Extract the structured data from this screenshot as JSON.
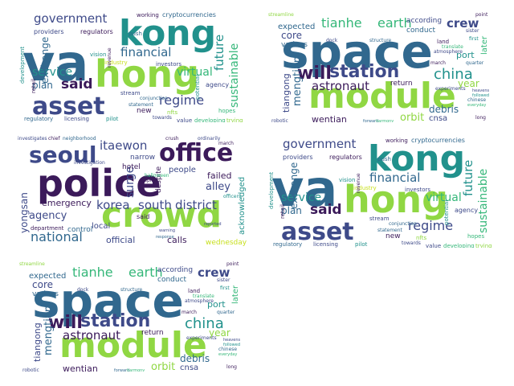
{
  "palette": {
    "dark": "#3b1a5a",
    "indigo": "#3e4a89",
    "slate": "#31688e",
    "teal": "#21918c",
    "sea": "#35b779",
    "lime": "#90d743",
    "yellow": "#c8e020"
  },
  "clouds": [
    {
      "name": "crypto-hongkong-cloud",
      "words": {
        "va": "va",
        "kong": "kong",
        "hong": "hong",
        "asset": "asset",
        "government": "government",
        "financial": "financial",
        "service": "service",
        "said": "said",
        "plan": "plan",
        "regime": "regime",
        "virtual": "virtual",
        "sustainable": "sustainable",
        "future": "future",
        "exchange": "exchange",
        "providers": "providers",
        "regulators": "regulators",
        "vision": "vision",
        "working": "working",
        "cryptocurrencies": "cryptocurrencies",
        "investors": "investors",
        "regulatory": "regulatory",
        "licensing": "licensing",
        "pilot": "pilot",
        "new": "new",
        "statement": "statement",
        "value": "value",
        "developing": "developing",
        "trying": "trying",
        "development": "development",
        "retail": "retail",
        "industry": "industry",
        "stream": "stream",
        "conjunction": "conjunction",
        "agency": "agency",
        "hopes": "hopes",
        "potential": "potential",
        "revenue": "revenue",
        "towards": "towards",
        "nfts": "nfts",
        "push": "push"
      }
    },
    {
      "name": "space-station-cloud",
      "words": {
        "space": "space",
        "module": "module",
        "station": "station",
        "will": "will",
        "china": "china",
        "astronaut": "astronaut",
        "tianhe": "tianhe",
        "earth": "earth",
        "crew": "crew",
        "core": "core",
        "various": "various",
        "expected": "expected",
        "according": "according",
        "conduct": "conduct",
        "mengtian": "mengtian",
        "tiangong": "tiangong",
        "wentian": "wentian",
        "orbit": "orbit",
        "cnsa": "cnsa",
        "debris": "debris",
        "return": "return",
        "port": "port",
        "year": "year",
        "later": "later",
        "land": "land",
        "dock": "dock",
        "structure": "structure",
        "atmosphere": "atmosphere",
        "translate": "translate",
        "march": "march",
        "quarter": "quarter",
        "experiments": "experiments",
        "robotic": "robotic",
        "long": "long",
        "first": "first",
        "sister": "sister",
        "chinese": "chinese",
        "everyday": "everyday",
        "point": "point",
        "followed": "followed",
        "heavens": "heavens",
        "forward": "forward",
        "harmony": "harmony",
        "streamline": "streamline"
      }
    },
    {
      "name": "seoul-crowd-cloud",
      "words": {
        "police": "police",
        "crowd": "crowd",
        "seoul": "seoul",
        "office": "office",
        "itaewon": "itaewon",
        "korea": "korea",
        "south": "south",
        "district": "district",
        "national": "national",
        "agency": "agency",
        "yongsan": "yongsan",
        "emergency": "emergency",
        "official": "official",
        "calls": "calls",
        "alley": "alley",
        "failed": "failed",
        "people": "people",
        "surge": "surge",
        "despite": "despite",
        "wednesday": "wednesday",
        "acknowledged": "acknowledged",
        "local": "local",
        "said": "said",
        "control": "control",
        "department": "department",
        "narrow": "narrow",
        "hotel": "hotel",
        "investigates": "investigates",
        "chief": "chief",
        "neighborhood": "neighborhood",
        "investigation": "investigation",
        "crush": "crush",
        "halloween": "halloween",
        "officers": "officers",
        "warning": "warning",
        "capital": "capital",
        "ordinarily": "ordinarily",
        "response": "response",
        "march": "march",
        "reported": "reported"
      }
    },
    {
      "name": "crypto-hongkong-cloud-repeat",
      "words": {
        "va": "va",
        "kong": "kong",
        "hong": "hong",
        "asset": "asset",
        "government": "government",
        "financial": "financial",
        "service": "service",
        "said": "said",
        "plan": "plan",
        "regime": "regime",
        "virtual": "virtual",
        "sustainable": "sustainable",
        "future": "future",
        "exchange": "exchange",
        "providers": "providers",
        "regulators": "regulators",
        "vision": "vision",
        "working": "working",
        "cryptocurrencies": "cryptocurrencies",
        "investors": "investors",
        "regulatory": "regulatory",
        "licensing": "licensing",
        "pilot": "pilot",
        "new": "new",
        "statement": "statement",
        "value": "value",
        "developing": "developing",
        "trying": "trying",
        "development": "development",
        "retail": "retail",
        "industry": "industry",
        "stream": "stream",
        "conjunction": "conjunction",
        "agency": "agency",
        "hopes": "hopes",
        "potential": "potential",
        "revenue": "revenue",
        "towards": "towards",
        "nfts": "nfts",
        "push": "push"
      }
    },
    {
      "name": "space-station-cloud-repeat",
      "words": {
        "space": "space",
        "module": "module",
        "station": "station",
        "will": "will",
        "china": "china",
        "astronaut": "astronaut",
        "tianhe": "tianhe",
        "earth": "earth",
        "crew": "crew",
        "core": "core",
        "various": "various",
        "expected": "expected",
        "according": "according",
        "conduct": "conduct",
        "mengtian": "mengtian",
        "tiangong": "tiangong",
        "wentian": "wentian",
        "orbit": "orbit",
        "cnsa": "cnsa",
        "debris": "debris",
        "return": "return",
        "port": "port",
        "year": "year",
        "later": "later",
        "land": "land",
        "dock": "dock",
        "structure": "structure",
        "atmosphere": "atmosphere",
        "translate": "translate",
        "march": "march",
        "quarter": "quarter",
        "experiments": "experiments",
        "robotic": "robotic",
        "long": "long",
        "first": "first",
        "sister": "sister",
        "chinese": "chinese",
        "everyday": "everyday",
        "point": "point",
        "followed": "followed",
        "heavens": "heavens",
        "forward": "forward",
        "harmony": "harmony",
        "streamline": "streamline"
      }
    }
  ]
}
